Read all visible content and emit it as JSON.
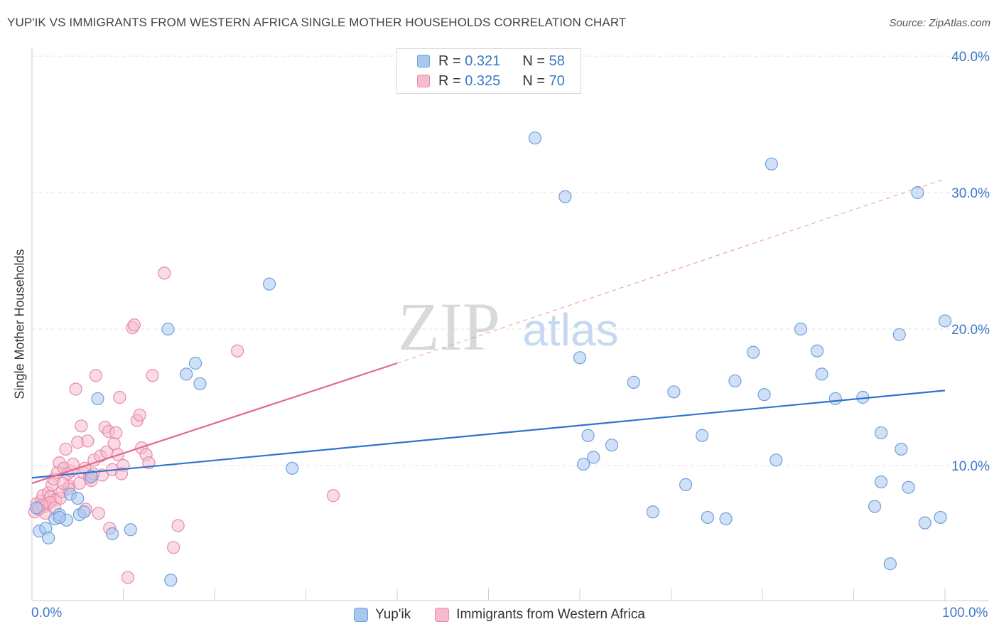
{
  "title": "YUP'IK VS IMMIGRANTS FROM WESTERN AFRICA SINGLE MOTHER HOUSEHOLDS CORRELATION CHART",
  "source": "Source: ZipAtlas.com",
  "watermark": {
    "zip": "ZIP",
    "atlas": "atlas"
  },
  "legend_top": [
    {
      "r_label": "R =",
      "r_value": "0.321",
      "n_label": "N =",
      "n_value": "58"
    },
    {
      "r_label": "R =",
      "r_value": "0.325",
      "n_label": "N =",
      "n_value": "70"
    }
  ],
  "legend_bottom": [
    "Yup'ik",
    "Immigrants from Western Africa"
  ],
  "colors": {
    "blue_fill": "#a9c8f0",
    "blue_stroke": "#6f9fdb",
    "blue_line": "#2f73d0",
    "pink_fill": "#f6bccd",
    "pink_stroke": "#e88aa8",
    "pink_line": "#e0698f",
    "axis_text": "#3a78c8"
  },
  "chart_data": {
    "type": "scatter",
    "title": "YUP'IK VS IMMIGRANTS FROM WESTERN AFRICA SINGLE MOTHER HOUSEHOLDS CORRELATION CHART",
    "xlabel": "",
    "ylabel": "Single Mother Households",
    "xlim": [
      0,
      100
    ],
    "ylim": [
      0,
      42
    ],
    "x_tick_labels": [
      "0.0%",
      "100.0%"
    ],
    "y_ticks": [
      10,
      20,
      30,
      40
    ],
    "y_tick_labels": [
      "10.0%",
      "20.0%",
      "30.0%",
      "40.0%"
    ],
    "grid": true,
    "series": [
      {
        "name": "Yup'ik",
        "R": 0.321,
        "N": 58,
        "trend": {
          "x0": 0,
          "y0": 9.1,
          "x1": 100,
          "y1": 15.5
        },
        "points": [
          [
            0.5,
            6.9
          ],
          [
            0.8,
            5.2
          ],
          [
            1.5,
            5.4
          ],
          [
            1.8,
            4.7
          ],
          [
            2.5,
            6.1
          ],
          [
            3.0,
            6.4
          ],
          [
            3.8,
            6.0
          ],
          [
            4.2,
            7.9
          ],
          [
            5.0,
            7.6
          ],
          [
            5.2,
            6.4
          ],
          [
            5.7,
            6.6
          ],
          [
            6.5,
            9.2
          ],
          [
            7.2,
            14.9
          ],
          [
            8.8,
            5.0
          ],
          [
            10.8,
            5.3
          ],
          [
            14.9,
            20.0
          ],
          [
            15.2,
            1.6
          ],
          [
            16.9,
            16.7
          ],
          [
            17.9,
            17.5
          ],
          [
            18.4,
            16.0
          ],
          [
            26.0,
            23.3
          ],
          [
            28.5,
            9.8
          ],
          [
            55.1,
            34.0
          ],
          [
            58.4,
            29.7
          ],
          [
            60.0,
            17.9
          ],
          [
            60.4,
            10.1
          ],
          [
            60.9,
            12.2
          ],
          [
            61.5,
            10.6
          ],
          [
            63.5,
            11.5
          ],
          [
            65.9,
            16.1
          ],
          [
            68.0,
            6.6
          ],
          [
            70.3,
            15.4
          ],
          [
            71.6,
            8.6
          ],
          [
            73.4,
            12.2
          ],
          [
            74.0,
            6.2
          ],
          [
            76.0,
            6.1
          ],
          [
            77.0,
            16.2
          ],
          [
            79.0,
            18.3
          ],
          [
            80.2,
            15.2
          ],
          [
            81.0,
            32.1
          ],
          [
            81.5,
            10.4
          ],
          [
            84.2,
            20.0
          ],
          [
            86.0,
            18.4
          ],
          [
            86.5,
            16.7
          ],
          [
            88.0,
            14.9
          ],
          [
            91.0,
            15.0
          ],
          [
            92.3,
            7.0
          ],
          [
            93.0,
            12.4
          ],
          [
            93.0,
            8.8
          ],
          [
            94.0,
            2.8
          ],
          [
            95.0,
            19.6
          ],
          [
            95.2,
            11.2
          ],
          [
            96.0,
            8.4
          ],
          [
            97.0,
            30.0
          ],
          [
            97.8,
            5.8
          ],
          [
            99.5,
            6.2
          ],
          [
            100.0,
            20.6
          ],
          [
            3.0,
            6.2
          ]
        ]
      },
      {
        "name": "Immigrants from Western Africa",
        "R": 0.325,
        "N": 70,
        "trend": {
          "x0": 0,
          "y0": 8.7,
          "x1": 40,
          "y1": 17.5
        },
        "trend_extension": {
          "x0": 40,
          "y0": 17.5,
          "x1": 100,
          "y1": 31.0
        },
        "points": [
          [
            0.3,
            6.6
          ],
          [
            0.5,
            7.2
          ],
          [
            0.8,
            6.9
          ],
          [
            1.0,
            7.4
          ],
          [
            1.2,
            7.8
          ],
          [
            1.4,
            7.0
          ],
          [
            1.5,
            6.5
          ],
          [
            1.7,
            7.2
          ],
          [
            1.8,
            8.0
          ],
          [
            2.0,
            7.7
          ],
          [
            2.2,
            8.6
          ],
          [
            2.4,
            9.0
          ],
          [
            2.6,
            7.5
          ],
          [
            2.8,
            9.5
          ],
          [
            3.0,
            10.2
          ],
          [
            3.1,
            7.6
          ],
          [
            3.3,
            8.1
          ],
          [
            3.5,
            9.8
          ],
          [
            3.7,
            11.2
          ],
          [
            3.9,
            9.4
          ],
          [
            4.1,
            8.5
          ],
          [
            4.3,
            9.6
          ],
          [
            4.5,
            10.1
          ],
          [
            4.8,
            15.6
          ],
          [
            5.0,
            11.7
          ],
          [
            5.2,
            8.7
          ],
          [
            5.4,
            12.9
          ],
          [
            5.6,
            9.5
          ],
          [
            5.9,
            6.8
          ],
          [
            6.1,
            11.8
          ],
          [
            6.3,
            9.1
          ],
          [
            6.5,
            8.9
          ],
          [
            6.8,
            10.4
          ],
          [
            7.0,
            16.6
          ],
          [
            7.3,
            6.5
          ],
          [
            7.5,
            10.7
          ],
          [
            7.7,
            9.3
          ],
          [
            8.0,
            12.8
          ],
          [
            8.2,
            11.0
          ],
          [
            8.4,
            12.5
          ],
          [
            8.5,
            5.4
          ],
          [
            8.8,
            9.7
          ],
          [
            9.0,
            11.6
          ],
          [
            9.2,
            12.4
          ],
          [
            9.4,
            10.8
          ],
          [
            9.6,
            15.0
          ],
          [
            10.0,
            10.0
          ],
          [
            10.5,
            1.8
          ],
          [
            11.0,
            20.1
          ],
          [
            11.2,
            20.3
          ],
          [
            11.5,
            13.3
          ],
          [
            11.8,
            13.7
          ],
          [
            12.0,
            11.3
          ],
          [
            12.5,
            10.8
          ],
          [
            12.8,
            10.2
          ],
          [
            13.2,
            16.6
          ],
          [
            14.5,
            24.1
          ],
          [
            15.5,
            4.0
          ],
          [
            16.0,
            5.6
          ],
          [
            22.5,
            18.4
          ],
          [
            33.0,
            7.8
          ],
          [
            2.0,
            7.3
          ],
          [
            1.1,
            7.1
          ],
          [
            6.7,
            9.4
          ],
          [
            4.0,
            8.3
          ],
          [
            5.8,
            9.8
          ],
          [
            2.5,
            6.9
          ],
          [
            3.4,
            8.7
          ],
          [
            0.7,
            6.8
          ],
          [
            9.8,
            9.4
          ]
        ]
      }
    ]
  }
}
